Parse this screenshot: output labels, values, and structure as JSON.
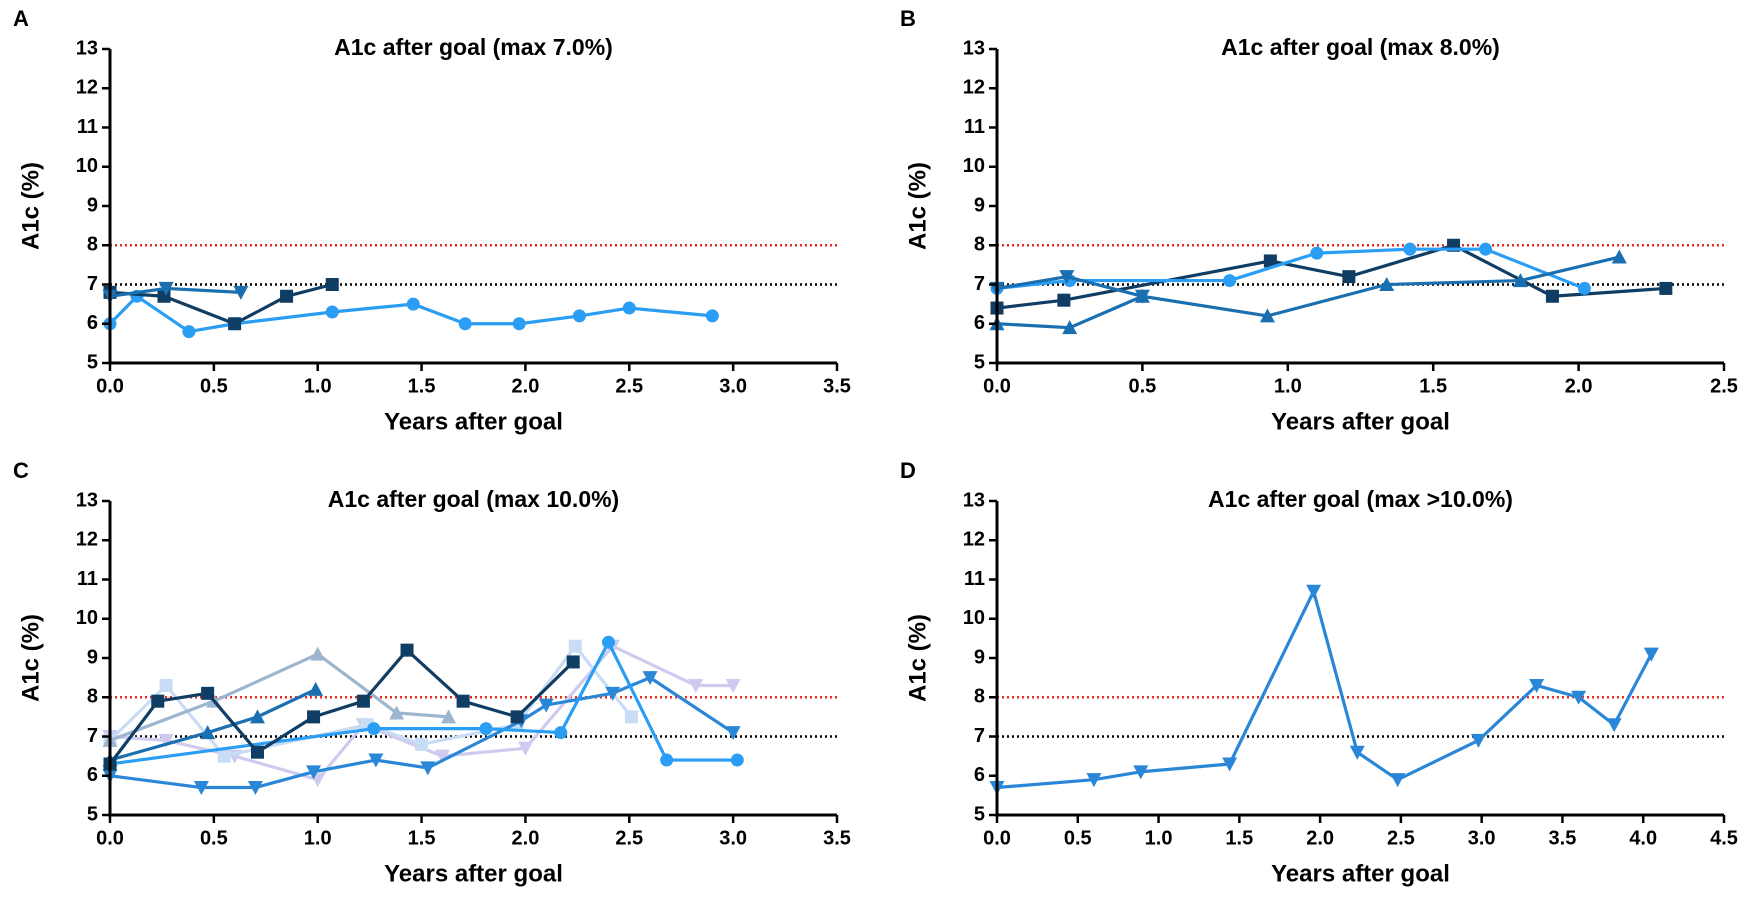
{
  "chart_data": [
    {
      "type": "line",
      "panel": "A",
      "title": "A1c after goal (max 7.0%)",
      "x_label": "Years after goal",
      "y_label": "A1c (%)",
      "xlim": [
        0,
        3.5
      ],
      "xticks": [
        {
          "value": 0,
          "label": "0.0"
        },
        {
          "value": 0.5,
          "label": "0.5"
        },
        {
          "value": 1,
          "label": "1.0"
        },
        {
          "value": 1.5,
          "label": "1.5"
        },
        {
          "value": 2,
          "label": "2.0"
        },
        {
          "value": 2.5,
          "label": "2.5"
        },
        {
          "value": 3,
          "label": "3.0"
        },
        {
          "value": 3.5,
          "label": "3.5"
        }
      ],
      "ylim": [
        5,
        13
      ],
      "yticks": [
        5,
        6,
        7,
        8,
        9,
        10,
        11,
        12,
        13
      ],
      "reference_lines": [
        {
          "value": 8,
          "color": "#e8291c"
        },
        {
          "value": 7,
          "color": "#000000"
        }
      ],
      "series": [
        {
          "color": "#2a9df4",
          "marker": "circle",
          "x": [
            0,
            0.13,
            0.38,
            0.6,
            1.07,
            1.46,
            1.71,
            1.97,
            2.26,
            2.5,
            2.9
          ],
          "values": [
            6.0,
            6.7,
            5.8,
            6.0,
            6.3,
            6.5,
            6.0,
            6.0,
            6.2,
            6.4,
            6.2
          ]
        },
        {
          "color": "#0f3d63",
          "marker": "square",
          "x": [
            0,
            0.26,
            0.6,
            0.85,
            1.07
          ],
          "values": [
            6.8,
            6.7,
            6.0,
            6.7,
            7.0
          ]
        },
        {
          "color": "#1a6fb0",
          "marker": "triangle-down",
          "x": [
            0,
            0.27,
            0.63
          ],
          "values": [
            6.7,
            6.9,
            6.8
          ]
        }
      ]
    },
    {
      "type": "line",
      "panel": "B",
      "title": "A1c after goal (max 8.0%)",
      "x_label": "Years after goal",
      "y_label": "A1c (%)",
      "xlim": [
        0,
        2.5
      ],
      "xticks": [
        {
          "value": 0,
          "label": "0.0"
        },
        {
          "value": 0.5,
          "label": "0.5"
        },
        {
          "value": 1,
          "label": "1.0"
        },
        {
          "value": 1.5,
          "label": "1.5"
        },
        {
          "value": 2,
          "label": "2.0"
        },
        {
          "value": 2.5,
          "label": "2.5"
        }
      ],
      "ylim": [
        5,
        13
      ],
      "yticks": [
        5,
        6,
        7,
        8,
        9,
        10,
        11,
        12,
        13
      ],
      "reference_lines": [
        {
          "value": 8,
          "color": "#e8291c"
        },
        {
          "value": 7,
          "color": "#000000"
        }
      ],
      "series": [
        {
          "color": "#0f3d63",
          "marker": "square",
          "x": [
            0,
            0.23,
            0.94,
            1.21,
            1.57,
            1.91,
            2.3
          ],
          "values": [
            6.4,
            6.6,
            7.6,
            7.2,
            8.0,
            6.7,
            6.9
          ]
        },
        {
          "color": "#2a9df4",
          "marker": "circle",
          "x": [
            0,
            0.25,
            0.8,
            1.1,
            1.42,
            1.68,
            2.02
          ],
          "values": [
            6.9,
            7.1,
            7.1,
            7.8,
            7.9,
            7.9,
            6.9
          ]
        },
        {
          "color": "#1a6fb0",
          "marker": "triangle-up",
          "x": [
            0,
            0.25,
            0.5,
            0.93,
            1.34,
            1.8,
            2.14
          ],
          "values": [
            6.0,
            5.9,
            6.7,
            6.2,
            7.0,
            7.1,
            7.7
          ]
        },
        {
          "color": "#1a6fb0",
          "marker": "triangle-down",
          "x": [
            0,
            0.24,
            0.5
          ],
          "values": [
            6.9,
            7.2,
            6.7
          ]
        }
      ]
    },
    {
      "type": "line",
      "panel": "C",
      "title": "A1c after goal (max 10.0%)",
      "x_label": "Years after goal",
      "y_label": "A1c (%)",
      "xlim": [
        0,
        3.5
      ],
      "xticks": [
        {
          "value": 0,
          "label": "0.0"
        },
        {
          "value": 0.5,
          "label": "0.5"
        },
        {
          "value": 1,
          "label": "1.0"
        },
        {
          "value": 1.5,
          "label": "1.5"
        },
        {
          "value": 2,
          "label": "2.0"
        },
        {
          "value": 2.5,
          "label": "2.5"
        },
        {
          "value": 3,
          "label": "3.0"
        },
        {
          "value": 3.5,
          "label": "3.5"
        }
      ],
      "ylim": [
        5,
        13
      ],
      "yticks": [
        5,
        6,
        7,
        8,
        9,
        10,
        11,
        12,
        13
      ],
      "reference_lines": [
        {
          "value": 8,
          "color": "#e8291c"
        },
        {
          "value": 7,
          "color": "#000000"
        }
      ],
      "series": [
        {
          "color": "#cfcbf0",
          "marker": "triangle-down",
          "x": [
            0,
            0.27,
            0.6,
            1.0,
            1.22,
            1.6,
            2.0,
            2.42,
            2.82,
            3.0
          ],
          "values": [
            7.0,
            6.9,
            6.5,
            5.9,
            7.3,
            6.5,
            6.7,
            9.3,
            8.3,
            8.3
          ]
        },
        {
          "color": "#c8dcf5",
          "marker": "square",
          "x": [
            0,
            0.27,
            0.55,
            1.24,
            1.5,
            1.96,
            2.24,
            2.51
          ],
          "values": [
            6.9,
            8.3,
            6.5,
            7.3,
            6.8,
            7.3,
            9.3,
            7.5
          ]
        },
        {
          "color": "#9db6cf",
          "marker": "triangle-up",
          "x": [
            0,
            0.5,
            1.0,
            1.38,
            1.63
          ],
          "values": [
            6.9,
            7.9,
            9.1,
            7.6,
            7.5
          ]
        },
        {
          "color": "#1a6fb0",
          "marker": "triangle-up",
          "x": [
            0,
            0.47,
            0.71,
            0.99
          ],
          "values": [
            6.4,
            7.1,
            7.5,
            8.2
          ]
        },
        {
          "color": "#2a87d8",
          "marker": "triangle-down",
          "x": [
            0,
            0.44,
            0.7,
            0.98,
            1.28,
            1.53,
            1.98,
            2.1,
            2.42,
            2.6,
            3.0
          ],
          "values": [
            6.0,
            5.7,
            5.7,
            6.1,
            6.4,
            6.2,
            7.4,
            7.8,
            8.1,
            8.5,
            7.1
          ]
        },
        {
          "color": "#2a9df4",
          "marker": "circle",
          "x": [
            0,
            1.27,
            1.81,
            2.17,
            2.4,
            2.68,
            3.02
          ],
          "values": [
            6.3,
            7.2,
            7.2,
            7.1,
            9.4,
            6.4,
            6.4
          ]
        },
        {
          "color": "#0f3d63",
          "marker": "square",
          "x": [
            0,
            0.23,
            0.47,
            0.71,
            0.98,
            1.22,
            1.43,
            1.7,
            1.96,
            2.23
          ],
          "values": [
            6.3,
            7.9,
            8.1,
            6.6,
            7.5,
            7.9,
            9.2,
            7.9,
            7.5,
            8.9
          ]
        }
      ]
    },
    {
      "type": "line",
      "panel": "D",
      "title": "A1c after goal (max >10.0%)",
      "x_label": "Years after goal",
      "y_label": "A1c (%)",
      "xlim": [
        0,
        4.5
      ],
      "xticks": [
        {
          "value": 0,
          "label": "0.0"
        },
        {
          "value": 0.5,
          "label": "0.5"
        },
        {
          "value": 1,
          "label": "1.0"
        },
        {
          "value": 1.5,
          "label": "1.5"
        },
        {
          "value": 2,
          "label": "2.0"
        },
        {
          "value": 2.5,
          "label": "2.5"
        },
        {
          "value": 3,
          "label": "3.0"
        },
        {
          "value": 3.5,
          "label": "3.5"
        },
        {
          "value": 4,
          "label": "4.0"
        },
        {
          "value": 4.5,
          "label": "4.5"
        }
      ],
      "ylim": [
        5,
        13
      ],
      "yticks": [
        5,
        6,
        7,
        8,
        9,
        10,
        11,
        12,
        13
      ],
      "reference_lines": [
        {
          "value": 8,
          "color": "#e8291c"
        },
        {
          "value": 7,
          "color": "#000000"
        }
      ],
      "series": [
        {
          "color": "#2a87d8",
          "marker": "triangle-down",
          "x": [
            0,
            0.6,
            0.89,
            1.44,
            1.96,
            2.23,
            2.48,
            2.98,
            3.34,
            3.6,
            3.82,
            4.05
          ],
          "values": [
            5.7,
            5.9,
            6.1,
            6.3,
            10.7,
            6.6,
            5.9,
            6.9,
            8.3,
            8.0,
            7.3,
            9.1
          ]
        }
      ]
    }
  ]
}
